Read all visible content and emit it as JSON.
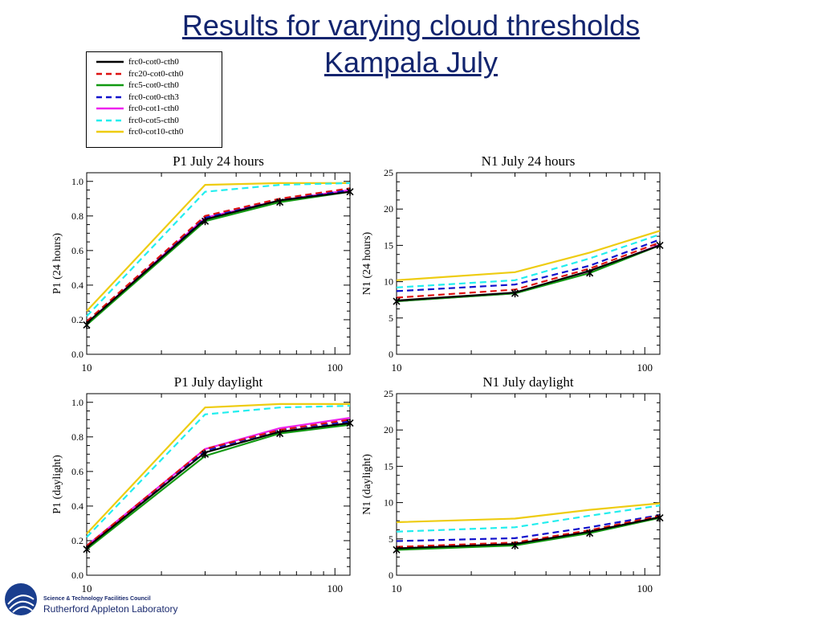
{
  "title_line1": "Results for varying cloud thresholds",
  "title_line2": "Kampala July",
  "legend": [
    {
      "label": "frc0-cot0-cth0",
      "color": "#000000",
      "dash": "solid"
    },
    {
      "label": "frc20-cot0-cth0",
      "color": "#dd1111",
      "dash": "dashed"
    },
    {
      "label": "frc5-cot0-cth0",
      "color": "#119911",
      "dash": "solid"
    },
    {
      "label": "frc0-cot0-cth3",
      "color": "#1111cc",
      "dash": "dashed"
    },
    {
      "label": "frc0-cot1-cth0",
      "color": "#ee22ee",
      "dash": "solid"
    },
    {
      "label": "frc0-cot5-cth0",
      "color": "#22eeee",
      "dash": "dashed"
    },
    {
      "label": "frc0-cot10-cth0",
      "color": "#eecc11",
      "dash": "solid"
    }
  ],
  "chart_data": [
    {
      "type": "line",
      "title": "P1 July 24 hours",
      "ylabel": "P1 (24 hours)",
      "xscale": "log",
      "xlim": [
        10,
        115
      ],
      "ylim": [
        0.0,
        1.05
      ],
      "xticks": [
        10,
        100
      ],
      "yticks": [
        "0.0",
        "0.2",
        "0.4",
        "0.6",
        "0.8",
        "1.0"
      ],
      "ytick_values": [
        0.0,
        0.2,
        0.4,
        0.6,
        0.8,
        1.0
      ],
      "x": [
        10,
        30,
        60,
        115
      ],
      "markers": [
        [
          10,
          0.17
        ],
        [
          30,
          0.77
        ],
        [
          60,
          0.88
        ],
        [
          115,
          0.94
        ]
      ],
      "series": [
        {
          "name": "frc0-cot0-cth0",
          "values": [
            0.18,
            0.78,
            0.89,
            0.94
          ]
        },
        {
          "name": "frc20-cot0-cth0",
          "values": [
            0.19,
            0.8,
            0.9,
            0.96
          ]
        },
        {
          "name": "frc5-cot0-cth0",
          "values": [
            0.17,
            0.77,
            0.88,
            0.94
          ]
        },
        {
          "name": "frc0-cot0-cth3",
          "values": [
            0.19,
            0.79,
            0.89,
            0.95
          ]
        },
        {
          "name": "frc0-cot1-cth0",
          "values": [
            0.18,
            0.79,
            0.89,
            0.95
          ]
        },
        {
          "name": "frc0-cot5-cth0",
          "values": [
            0.22,
            0.94,
            0.98,
            0.99
          ]
        },
        {
          "name": "frc0-cot10-cth0",
          "values": [
            0.25,
            0.98,
            0.99,
            0.99
          ]
        }
      ]
    },
    {
      "type": "line",
      "title": "N1 July 24 hours",
      "ylabel": "N1 (24 hours)",
      "xscale": "log",
      "xlim": [
        10,
        115
      ],
      "ylim": [
        0,
        25
      ],
      "xticks": [
        10,
        100
      ],
      "yticks": [
        "0",
        "5",
        "10",
        "15",
        "20",
        "25"
      ],
      "ytick_values": [
        0,
        5,
        10,
        15,
        20,
        25
      ],
      "x": [
        10,
        30,
        60,
        115
      ],
      "markers": [
        [
          10,
          7.3
        ],
        [
          30,
          8.4
        ],
        [
          60,
          11.2
        ],
        [
          115,
          15.0
        ]
      ],
      "series": [
        {
          "name": "frc0-cot0-cth0",
          "values": [
            7.4,
            8.5,
            11.5,
            15.0
          ]
        },
        {
          "name": "frc20-cot0-cth0",
          "values": [
            7.8,
            8.9,
            11.8,
            15.4
          ]
        },
        {
          "name": "frc5-cot0-cth0",
          "values": [
            7.3,
            8.4,
            11.2,
            15.0
          ]
        },
        {
          "name": "frc0-cot0-cth3",
          "values": [
            8.7,
            9.6,
            12.2,
            15.8
          ]
        },
        {
          "name": "frc0-cot1-cth0",
          "values": [
            7.3,
            8.4,
            11.3,
            15.1
          ]
        },
        {
          "name": "frc0-cot5-cth0",
          "values": [
            9.2,
            10.2,
            13.2,
            16.5
          ]
        },
        {
          "name": "frc0-cot10-cth0",
          "values": [
            10.2,
            11.3,
            14.0,
            17.0
          ]
        }
      ]
    },
    {
      "type": "line",
      "title": "P1 July daylight",
      "ylabel": "P1 (daylight)",
      "xscale": "log",
      "xlim": [
        10,
        115
      ],
      "ylim": [
        0.0,
        1.05
      ],
      "xticks": [
        10,
        100
      ],
      "yticks": [
        "0.0",
        "0.2",
        "0.4",
        "0.6",
        "0.8",
        "1.0"
      ],
      "ytick_values": [
        0.0,
        0.2,
        0.4,
        0.6,
        0.8,
        1.0
      ],
      "x": [
        10,
        30,
        60,
        115
      ],
      "markers": [
        [
          10,
          0.15
        ],
        [
          30,
          0.7
        ],
        [
          60,
          0.82
        ],
        [
          115,
          0.88
        ]
      ],
      "series": [
        {
          "name": "frc0-cot0-cth0",
          "values": [
            0.16,
            0.71,
            0.83,
            0.88
          ]
        },
        {
          "name": "frc20-cot0-cth0",
          "values": [
            0.17,
            0.73,
            0.84,
            0.9
          ]
        },
        {
          "name": "frc5-cot0-cth0",
          "values": [
            0.15,
            0.69,
            0.82,
            0.87
          ]
        },
        {
          "name": "frc0-cot0-cth3",
          "values": [
            0.17,
            0.72,
            0.84,
            0.89
          ]
        },
        {
          "name": "frc0-cot1-cth0",
          "values": [
            0.17,
            0.73,
            0.85,
            0.91
          ]
        },
        {
          "name": "frc0-cot5-cth0",
          "values": [
            0.22,
            0.93,
            0.97,
            0.98
          ]
        },
        {
          "name": "frc0-cot10-cth0",
          "values": [
            0.24,
            0.97,
            0.99,
            0.99
          ]
        }
      ]
    },
    {
      "type": "line",
      "title": "N1 July daylight",
      "ylabel": "N1 (daylight)",
      "xscale": "log",
      "xlim": [
        10,
        115
      ],
      "ylim": [
        0,
        25
      ],
      "xticks": [
        10,
        100
      ],
      "yticks": [
        "0",
        "5",
        "10",
        "15",
        "20",
        "25"
      ],
      "ytick_values": [
        0,
        5,
        10,
        15,
        20,
        25
      ],
      "x": [
        10,
        30,
        60,
        115
      ],
      "markers": [
        [
          10,
          3.5
        ],
        [
          30,
          4.1
        ],
        [
          60,
          5.8
        ],
        [
          115,
          7.9
        ]
      ],
      "series": [
        {
          "name": "frc0-cot0-cth0",
          "values": [
            3.7,
            4.3,
            6.0,
            8.0
          ]
        },
        {
          "name": "frc20-cot0-cth0",
          "values": [
            3.9,
            4.5,
            6.2,
            8.2
          ]
        },
        {
          "name": "frc5-cot0-cth0",
          "values": [
            3.5,
            4.1,
            5.8,
            7.9
          ]
        },
        {
          "name": "frc0-cot0-cth3",
          "values": [
            4.7,
            5.1,
            6.6,
            8.3
          ]
        },
        {
          "name": "frc0-cot1-cth0",
          "values": [
            3.7,
            4.3,
            6.0,
            8.0
          ]
        },
        {
          "name": "frc0-cot5-cth0",
          "values": [
            6.0,
            6.6,
            8.2,
            9.6
          ]
        },
        {
          "name": "frc0-cot10-cth0",
          "values": [
            7.3,
            7.8,
            9.0,
            9.9
          ]
        }
      ]
    }
  ],
  "logo": {
    "org": "Science & Technology Facilities Council",
    "lab": "Rutherford Appleton Laboratory",
    "color": "#1a2a6e"
  }
}
